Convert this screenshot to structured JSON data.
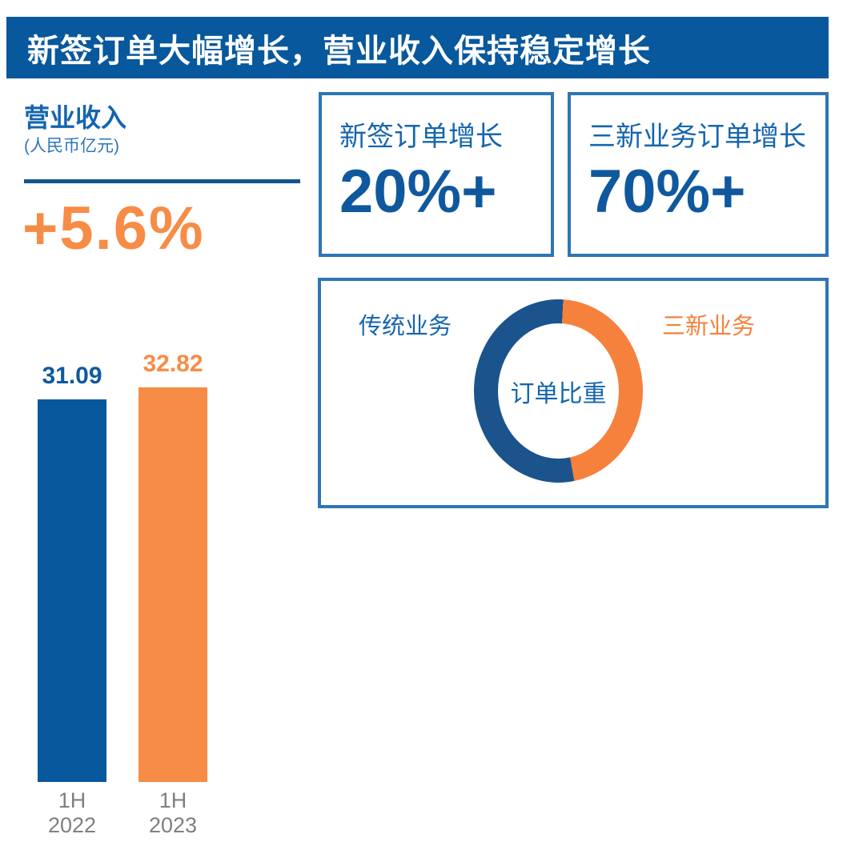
{
  "header": {
    "title": "新签订单大幅增长，营业收入保持稳定增长",
    "bg_color": "#07589C",
    "text_color": "#FFFFFF"
  },
  "revenue": {
    "title": "营业收入",
    "unit": "(人民币亿元)",
    "delta": "+5.6%",
    "delta_color": "#F78C46"
  },
  "kpi_boxes": [
    {
      "label": "新签订单增长",
      "value": "20%+"
    },
    {
      "label": "三新业务订单增长",
      "value": "70%+"
    }
  ],
  "donut": {
    "legend_left": "传统业务",
    "legend_right": "三新业务",
    "center_label": "订单比重"
  },
  "colors": {
    "brand_blue": "#07589C",
    "text_blue": "#1565AE",
    "value_blue": "#10589E",
    "box_border_blue": "#2E75B6",
    "donut_blue": "#1B538C",
    "orange": "#F78C46",
    "donut_orange": "#F5813D",
    "axis_gray": "#7F7F7F"
  },
  "chart_data": [
    {
      "type": "bar",
      "title": "营业收入",
      "ylabel": "人民币亿元",
      "categories": [
        "1H 2022",
        "1H 2023"
      ],
      "categories_lines": [
        [
          "1H",
          "2022"
        ],
        [
          "1H",
          "2023"
        ]
      ],
      "values": [
        31.09,
        32.82
      ],
      "value_labels": [
        "31.09",
        "32.82"
      ],
      "colors": [
        "#07589C",
        "#F78C46"
      ],
      "growth_annotation": "+5.6%",
      "ylim": [
        0,
        35
      ],
      "grid": false,
      "legend_position": "none"
    },
    {
      "type": "pie",
      "donut": true,
      "title": "订单比重",
      "labels": [
        "传统业务",
        "三新业务"
      ],
      "values_pct_est": [
        53.6,
        46.4
      ],
      "colors": [
        "#1B538C",
        "#F5813D"
      ],
      "start_deg": 3,
      "legend_position": "sides"
    }
  ]
}
